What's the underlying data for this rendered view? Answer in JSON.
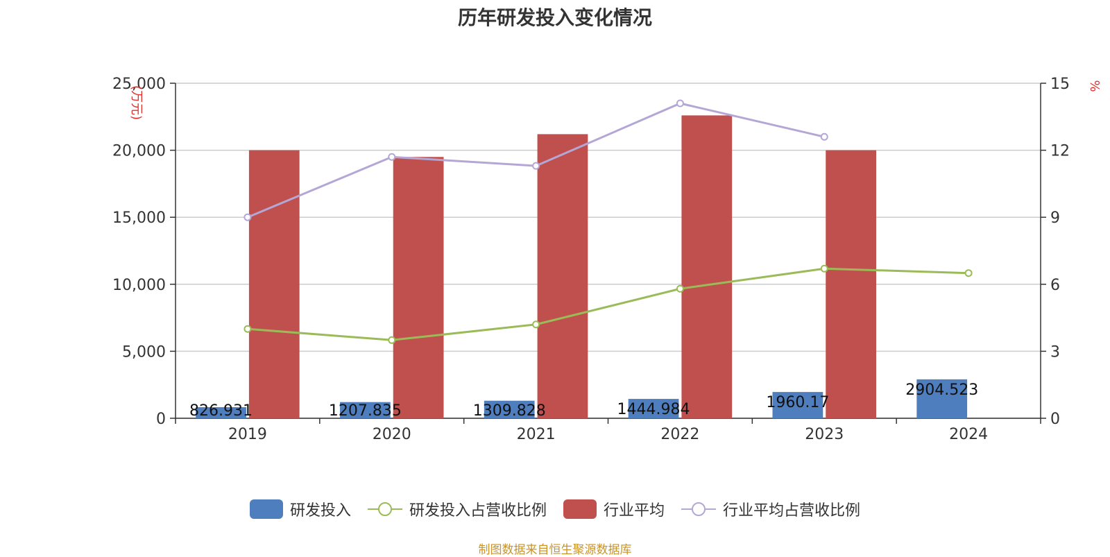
{
  "title": "历年研发投入变化情况",
  "source": "制图数据来自恒生聚源数据库",
  "colors": {
    "rd_bar": "#4f7ebe",
    "ind_bar": "#c0504d",
    "rd_line": "#9bbb59",
    "ind_line": "#b4a7d6",
    "axis_unit": "#e03030",
    "grid": "#cccccc",
    "axis": "#333333"
  },
  "chart_data": {
    "type": "bar",
    "categories": [
      "2019",
      "2020",
      "2021",
      "2022",
      "2023",
      "2024"
    ],
    "left_axis": {
      "unit": "(万元)",
      "ylim": [
        0,
        25000
      ],
      "ticks": [
        "0",
        "5,000",
        "10,000",
        "15,000",
        "20,000",
        "25,000"
      ],
      "tick_values": [
        0,
        5000,
        10000,
        15000,
        20000,
        25000
      ]
    },
    "right_axis": {
      "unit": "%",
      "ylim": [
        0,
        15
      ],
      "ticks": [
        "0",
        "3",
        "6",
        "9",
        "12",
        "15"
      ],
      "tick_values": [
        0,
        3,
        6,
        9,
        12,
        15
      ]
    },
    "series": [
      {
        "name": "研发投入",
        "type": "bar",
        "axis": "left",
        "values": [
          826.931,
          1207.835,
          1309.828,
          1444.984,
          1960.17,
          2904.523
        ],
        "labels": [
          "826.931",
          "1207.835",
          "1309.828",
          "1444.984",
          "1960.17",
          "2904.523"
        ]
      },
      {
        "name": "研发投入占营收比例",
        "type": "line",
        "axis": "right",
        "values": [
          4.0,
          3.5,
          4.2,
          5.8,
          6.7,
          6.5
        ]
      },
      {
        "name": "行业平均",
        "type": "bar",
        "axis": "left",
        "values": [
          20000,
          19500,
          21200,
          22600,
          20000,
          null
        ]
      },
      {
        "name": "行业平均占营收比例",
        "type": "line",
        "axis": "right",
        "values": [
          9.0,
          11.7,
          11.3,
          14.1,
          12.6,
          null
        ]
      }
    ],
    "legend_position": "bottom-center",
    "grid": true
  }
}
